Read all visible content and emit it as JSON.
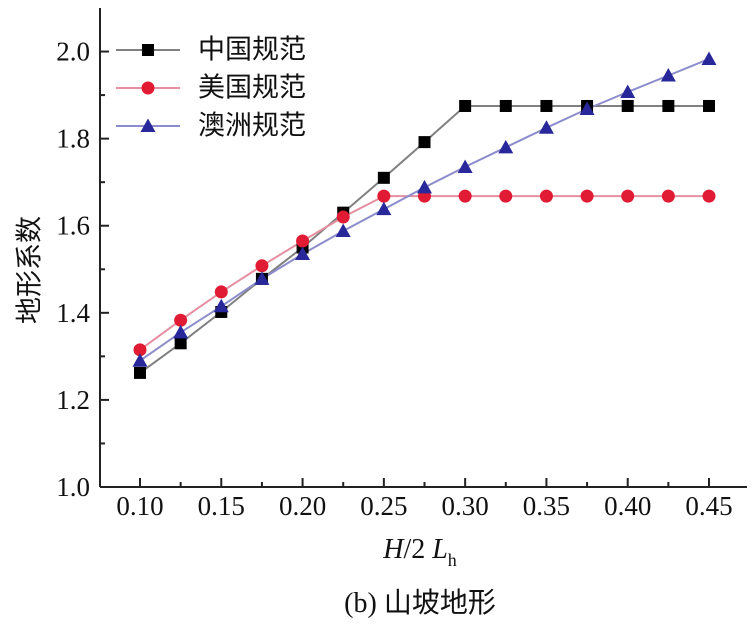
{
  "chart_data": {
    "type": "line",
    "ylabel": "地形系数",
    "xlabel_italic": "H",
    "xlabel_mid": "/2 ",
    "xlabel_italic2": "L",
    "xlabel_sub": "h",
    "caption": "(b) 山坡地形",
    "xlim": [
      0.075,
      0.475
    ],
    "ylim": [
      1.0,
      2.1
    ],
    "xticks": [
      "0.10",
      "0.15",
      "0.20",
      "0.25",
      "0.30",
      "0.35",
      "0.40",
      "0.45"
    ],
    "xtick_values": [
      0.1,
      0.15,
      0.2,
      0.25,
      0.3,
      0.35,
      0.4,
      0.45
    ],
    "yticks": [
      "1.0",
      "1.2",
      "1.4",
      "1.6",
      "1.8",
      "2.0"
    ],
    "ytick_values": [
      1.0,
      1.2,
      1.4,
      1.6,
      1.8,
      2.0
    ],
    "legend_position": "top-left",
    "grid": false,
    "x": [
      0.1,
      0.125,
      0.15,
      0.175,
      0.2,
      0.225,
      0.25,
      0.275,
      0.3,
      0.325,
      0.35,
      0.375,
      0.4,
      0.425,
      0.45
    ],
    "series": [
      {
        "name": "中国规范",
        "marker": "square",
        "line_color": "#808080",
        "marker_color": "#000000",
        "values": [
          1.262,
          1.33,
          1.402,
          1.478,
          1.55,
          1.63,
          1.71,
          1.792,
          1.875,
          1.875,
          1.875,
          1.875,
          1.875,
          1.875,
          1.875
        ]
      },
      {
        "name": "美国规范",
        "marker": "circle",
        "line_color": "#e58fa0",
        "marker_color": "#e01b33",
        "values": [
          1.315,
          1.383,
          1.448,
          1.508,
          1.565,
          1.62,
          1.668,
          1.668,
          1.668,
          1.668,
          1.668,
          1.668,
          1.668,
          1.668,
          1.668
        ]
      },
      {
        "name": "澳洲规范",
        "marker": "triangle",
        "line_color": "#8c8ccc",
        "marker_color": "#28289a",
        "values": [
          1.29,
          1.355,
          1.415,
          1.478,
          1.535,
          1.588,
          1.638,
          1.688,
          1.735,
          1.78,
          1.825,
          1.868,
          1.907,
          1.945,
          1.983
        ]
      }
    ]
  }
}
